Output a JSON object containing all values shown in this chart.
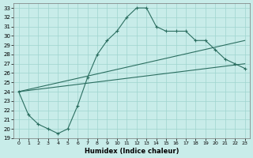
{
  "xlabel": "Humidex (Indice chaleur)",
  "xlim": [
    -0.5,
    23.5
  ],
  "ylim": [
    19,
    33.5
  ],
  "yticks": [
    19,
    20,
    21,
    22,
    23,
    24,
    25,
    26,
    27,
    28,
    29,
    30,
    31,
    32,
    33
  ],
  "xticks": [
    0,
    1,
    2,
    3,
    4,
    5,
    6,
    7,
    8,
    9,
    10,
    11,
    12,
    13,
    14,
    15,
    16,
    17,
    18,
    19,
    20,
    21,
    22,
    23
  ],
  "bg_color": "#c8ece9",
  "grid_color": "#9fd4ce",
  "line_color": "#2b6e60",
  "main_line": [
    24,
    21.5,
    20.5,
    20,
    19.5,
    20.0,
    22.5,
    25.5,
    28.0,
    29.5,
    30.5,
    32.0,
    33.0,
    33.0,
    31.0,
    30.5,
    30.5,
    30.5,
    29.5,
    29.5,
    28.5,
    27.5,
    27.0,
    26.5
  ],
  "trend1_y0": 24,
  "trend1_y1": 29.5,
  "trend2_y0": 24,
  "trend2_y1": 27.0
}
